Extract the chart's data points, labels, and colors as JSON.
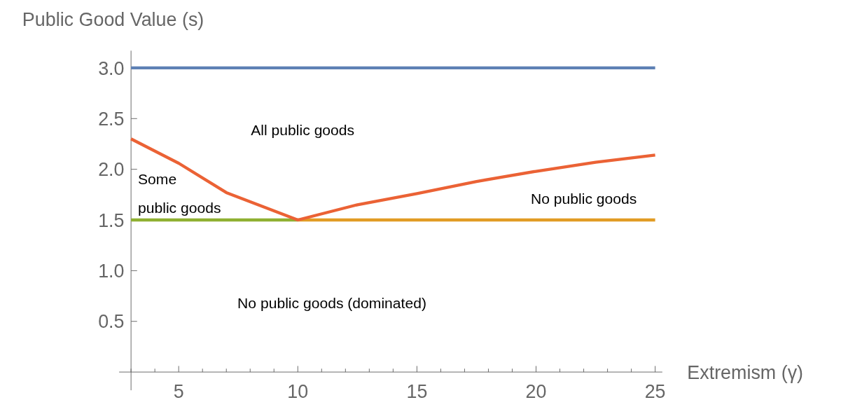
{
  "chart_data": {
    "type": "line",
    "xlabel": "Extremism (γ)",
    "ylabel": "Public Good Value (s)",
    "xlim": [
      2.5,
      25.3
    ],
    "ylim": [
      -0.18,
      3.17
    ],
    "xticks": [
      {
        "value": 3,
        "label": null
      },
      {
        "value": 4,
        "label": null
      },
      5,
      {
        "value": 6,
        "label": null
      },
      {
        "value": 7,
        "label": null
      },
      {
        "value": 8,
        "label": null
      },
      {
        "value": 9,
        "label": null
      },
      10,
      {
        "value": 11,
        "label": null
      },
      {
        "value": 12,
        "label": null
      },
      {
        "value": 13,
        "label": null
      },
      {
        "value": 14,
        "label": null
      },
      15,
      {
        "value": 16,
        "label": null
      },
      {
        "value": 17,
        "label": null
      },
      {
        "value": 18,
        "label": null
      },
      {
        "value": 19,
        "label": null
      },
      20,
      {
        "value": 21,
        "label": null
      },
      {
        "value": 22,
        "label": null
      },
      {
        "value": 23,
        "label": null
      },
      {
        "value": 24,
        "label": null
      },
      25
    ],
    "yticks": [
      {
        "value": 0.5,
        "label": "0.5"
      },
      {
        "value": 1,
        "label": "1.0"
      },
      {
        "value": 1.5,
        "label": "1.5"
      },
      {
        "value": 2,
        "label": "2.0"
      },
      {
        "value": 2.5,
        "label": "2.5"
      },
      {
        "value": 3,
        "label": "3.0"
      }
    ],
    "grid": false,
    "marker": "none",
    "line_style": "solid",
    "series": [
      {
        "color": "#5e81b5",
        "x": [
          3,
          25
        ],
        "values": [
          3,
          3
        ]
      },
      {
        "color": "#8fb032",
        "x": [
          3,
          10
        ],
        "values": [
          1.5,
          1.5
        ]
      },
      {
        "color": "#e19c24",
        "x": [
          10,
          25
        ],
        "values": [
          1.5,
          1.5
        ]
      },
      {
        "color": "#eb6235",
        "x": [
          3,
          5,
          7,
          9,
          10,
          12.5,
          15,
          17.5,
          20,
          22.5,
          25
        ],
        "values": [
          2.3,
          2.06,
          1.77,
          1.59,
          1.5,
          1.65,
          1.76,
          1.88,
          1.98,
          2.07,
          2.14
        ]
      }
    ],
    "annotations": [
      "All public goods",
      "Some public goods",
      "No public goods",
      "No public goods (dominated)"
    ]
  }
}
